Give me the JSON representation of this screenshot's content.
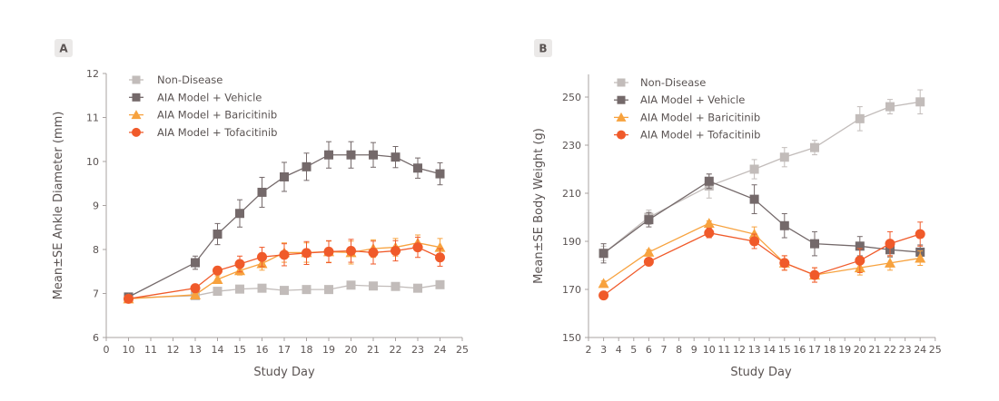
{
  "chart_data": [
    {
      "type": "line",
      "panel_label": "A",
      "xlabel": "Study Day",
      "ylabel": "Mean±SE Ankle Diameter (mm)",
      "x_ticks": [
        0,
        10,
        11,
        12,
        13,
        14,
        15,
        16,
        17,
        18,
        19,
        20,
        21,
        22,
        23,
        24,
        25
      ],
      "y_ticks": [
        6,
        7,
        8,
        9,
        10,
        11,
        12
      ],
      "ylim": [
        6,
        12
      ],
      "x": [
        10,
        13,
        14,
        15,
        16,
        17,
        18,
        19,
        20,
        21,
        22,
        23,
        24
      ],
      "legend_position": "top-left",
      "grid": false,
      "series": [
        {
          "name": "Non-Disease",
          "marker": "square",
          "color": "#c2bcba",
          "values": [
            6.9,
            6.95,
            7.05,
            7.1,
            7.12,
            7.07,
            7.09,
            7.09,
            7.19,
            7.17,
            7.16,
            7.12,
            7.2
          ],
          "se": [
            0.03,
            0.03,
            0.04,
            0.04,
            0.04,
            0.04,
            0.04,
            0.04,
            0.04,
            0.04,
            0.04,
            0.04,
            0.04
          ]
        },
        {
          "name": "AIA Model + Vehicle",
          "marker": "square",
          "color": "#74696a",
          "values": [
            6.92,
            7.7,
            8.35,
            8.82,
            9.3,
            9.65,
            9.88,
            10.15,
            10.15,
            10.15,
            10.1,
            9.85,
            9.72
          ],
          "se": [
            0.05,
            0.15,
            0.24,
            0.31,
            0.34,
            0.33,
            0.31,
            0.3,
            0.3,
            0.28,
            0.24,
            0.23,
            0.25
          ]
        },
        {
          "name": "AIA Model + Baricitinib",
          "marker": "triangle",
          "color": "#f7a23e",
          "values": [
            6.88,
            6.97,
            7.32,
            7.52,
            7.68,
            7.93,
            7.93,
            7.95,
            7.93,
            8.02,
            8.05,
            8.15,
            8.05
          ],
          "se": [
            0.03,
            0.04,
            0.08,
            0.1,
            0.15,
            0.22,
            0.22,
            0.24,
            0.26,
            0.2,
            0.2,
            0.18,
            0.2
          ]
        },
        {
          "name": "AIA Model + Tofacitinib",
          "marker": "circle",
          "color": "#f05a2a",
          "values": [
            6.88,
            7.12,
            7.52,
            7.67,
            7.83,
            7.88,
            7.92,
            7.95,
            7.97,
            7.93,
            7.97,
            8.05,
            7.82
          ],
          "se": [
            0.03,
            0.05,
            0.08,
            0.18,
            0.22,
            0.25,
            0.26,
            0.25,
            0.26,
            0.26,
            0.23,
            0.23,
            0.2
          ]
        }
      ]
    },
    {
      "type": "line",
      "panel_label": "B",
      "xlabel": "Study Day",
      "ylabel": "Mean±SE Body Weight (g)",
      "x_ticks": [
        2,
        3,
        4,
        5,
        6,
        7,
        8,
        9,
        10,
        11,
        12,
        13,
        14,
        15,
        16,
        17,
        18,
        19,
        20,
        21,
        22,
        23,
        24,
        25
      ],
      "y_ticks": [
        150,
        170,
        190,
        210,
        230,
        250
      ],
      "xlim": [
        2,
        25
      ],
      "ylim": [
        150,
        260
      ],
      "x": [
        3,
        6,
        10,
        13,
        15,
        17,
        20,
        22,
        24
      ],
      "legend_position": "top-left",
      "grid": false,
      "series": [
        {
          "name": "Non-Disease",
          "marker": "square",
          "color": "#c2bcba",
          "values": [
            185,
            200,
            213,
            220,
            225,
            229,
            241,
            246,
            248
          ],
          "se": [
            3,
            3,
            5,
            4,
            4,
            3,
            5,
            3,
            5
          ]
        },
        {
          "name": "AIA Model + Vehicle",
          "marker": "square",
          "color": "#74696a",
          "values": [
            185,
            199,
            215,
            207.5,
            196.5,
            189,
            188,
            186.5,
            185.5
          ],
          "se": [
            4,
            3,
            3,
            6,
            5,
            5,
            4,
            3,
            3
          ]
        },
        {
          "name": "AIA Model + Baricitinib",
          "marker": "triangle",
          "color": "#f7a23e",
          "values": [
            172.5,
            185.5,
            197.5,
            193,
            181,
            176,
            179,
            181,
            183
          ],
          "se": [
            1,
            1,
            1,
            3,
            3,
            3,
            3,
            3,
            3
          ]
        },
        {
          "name": "AIA Model + Tofacitinib",
          "marker": "circle",
          "color": "#f05a2a",
          "values": [
            167.5,
            181.5,
            193.5,
            190,
            181,
            176,
            182,
            189,
            193
          ],
          "se": [
            1,
            1,
            2,
            3,
            3,
            3,
            5,
            5,
            5
          ]
        }
      ]
    }
  ]
}
